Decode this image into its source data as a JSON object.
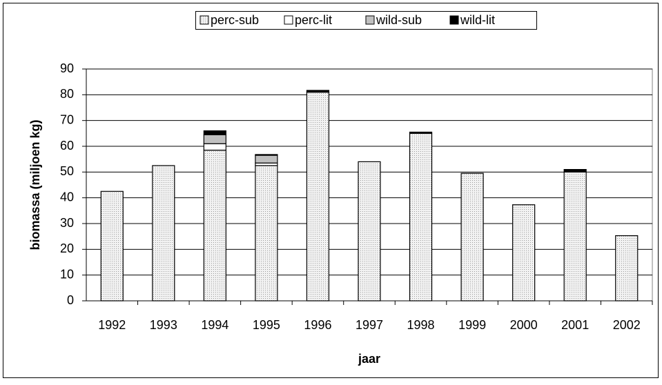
{
  "chart_data": {
    "type": "stacked-bar",
    "x_label": "jaar",
    "y_label": "biomassa (miljoen kg)",
    "categories": [
      "1992",
      "1993",
      "1994",
      "1995",
      "1996",
      "1997",
      "1998",
      "1999",
      "2000",
      "2001",
      "2002"
    ],
    "series": [
      {
        "name": "perc-sub",
        "color": "#e4e4e4",
        "values": [
          42.5,
          52.5,
          58.5,
          52.5,
          81,
          54,
          65,
          49.5,
          37.3,
          50,
          25.3
        ]
      },
      {
        "name": "perc-lit",
        "color": "#ffffff",
        "values": [
          0,
          0,
          2.5,
          1,
          0,
          0,
          0,
          0,
          0,
          0,
          0
        ]
      },
      {
        "name": "wild-sub",
        "color": "#c0c0c0",
        "values": [
          0,
          0,
          3.5,
          3,
          0,
          0,
          0,
          0,
          0,
          0,
          0
        ]
      },
      {
        "name": "wild-lit",
        "color": "#000000",
        "values": [
          0,
          0,
          1.5,
          0.3,
          0.7,
          0,
          0.5,
          0,
          0,
          1,
          0
        ]
      }
    ],
    "ylim": [
      0,
      90
    ],
    "yticks": [
      0,
      10,
      20,
      30,
      40,
      50,
      60,
      70,
      80,
      90
    ],
    "grid": true
  }
}
